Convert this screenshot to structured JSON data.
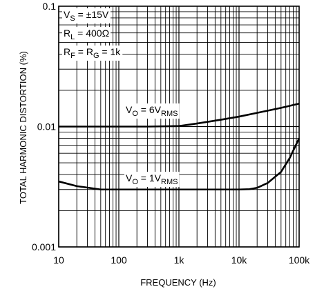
{
  "chart_data": {
    "type": "line",
    "title": "",
    "xlabel": "FREQUENCY (Hz)",
    "ylabel": "TOTAL HARMONIC DISTORTION (%)",
    "x_scale": "log",
    "y_scale": "log",
    "xlim": [
      10,
      100000
    ],
    "ylim": [
      0.001,
      0.1
    ],
    "grid": true,
    "x_ticks": [
      "10",
      "100",
      "1k",
      "10k",
      "100k"
    ],
    "y_ticks": [
      "0.001",
      "0.01",
      "0.1"
    ],
    "conditions": [
      {
        "base": "V",
        "sub": "S",
        "rest": " = ±15V"
      },
      {
        "base": "R",
        "sub": "L",
        "rest": " = 400Ω"
      },
      {
        "base": "R",
        "sub": "F",
        "mid": " = R",
        "sub2": "G",
        "rest": " = 1k"
      }
    ],
    "series": [
      {
        "name": "VO = 6VRMS",
        "label": {
          "base": "V",
          "sub": "O",
          "mid": " = 6V",
          "sub2": "RMS"
        },
        "x": [
          10,
          30,
          100,
          300,
          1000,
          2000,
          5000,
          10000,
          20000,
          50000,
          100000
        ],
        "y": [
          0.01,
          0.01,
          0.01,
          0.01,
          0.0101,
          0.0106,
          0.0114,
          0.0121,
          0.013,
          0.0143,
          0.0155
        ]
      },
      {
        "name": "VO = 1VRMS",
        "label": {
          "base": "V",
          "sub": "O",
          "mid": " = 1V",
          "sub2": "RMS"
        },
        "x": [
          10,
          20,
          50,
          100,
          300,
          1000,
          3000,
          10000,
          15000,
          20000,
          30000,
          50000,
          70000,
          100000
        ],
        "y": [
          0.0035,
          0.0032,
          0.003,
          0.003,
          0.003,
          0.003,
          0.003,
          0.003,
          0.00302,
          0.0031,
          0.0034,
          0.0042,
          0.0055,
          0.008
        ]
      }
    ]
  }
}
